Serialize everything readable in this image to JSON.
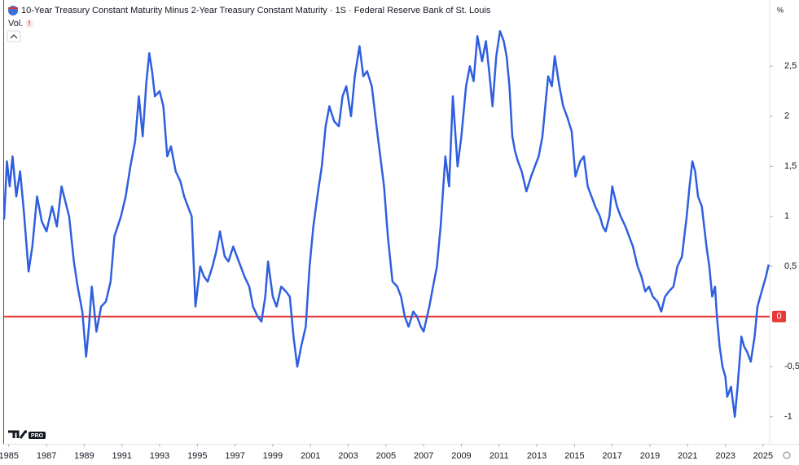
{
  "chart_data": {
    "type": "line",
    "title": "10-Year Treasury Constant Maturity Minus 2-Year Treasury Constant Maturity · 1S · Federal Reserve Bank of St. Louis",
    "volume_label": "Vol.",
    "unit": "%",
    "logo_text": "PRO",
    "color": "#2f5fe0",
    "x": [
      1984.75,
      1984.9,
      1985.05,
      1985.2,
      1985.4,
      1985.6,
      1985.8,
      1986.05,
      1986.25,
      1986.5,
      1986.75,
      1987.0,
      1987.3,
      1987.55,
      1987.8,
      1988.0,
      1988.2,
      1988.45,
      1988.65,
      1988.9,
      1989.1,
      1989.25,
      1989.4,
      1989.65,
      1989.9,
      1990.15,
      1990.4,
      1990.6,
      1990.95,
      1991.2,
      1991.45,
      1991.7,
      1991.9,
      1992.1,
      1992.3,
      1992.45,
      1992.6,
      1992.75,
      1993.0,
      1993.2,
      1993.4,
      1993.6,
      1993.85,
      1994.1,
      1994.3,
      1994.5,
      1994.7,
      1994.9,
      1995.15,
      1995.35,
      1995.55,
      1995.8,
      1996.0,
      1996.2,
      1996.45,
      1996.65,
      1996.9,
      1997.1,
      1997.3,
      1997.5,
      1997.75,
      1997.95,
      1998.2,
      1998.4,
      1998.6,
      1998.75,
      1999.0,
      1999.2,
      1999.45,
      1999.7,
      1999.9,
      2000.1,
      2000.3,
      2000.5,
      2000.75,
      2000.95,
      2001.15,
      2001.4,
      2001.6,
      2001.8,
      2002.0,
      2002.25,
      2002.5,
      2002.7,
      2002.9,
      2003.15,
      2003.35,
      2003.6,
      2003.8,
      2004.0,
      2004.25,
      2004.5,
      2004.7,
      2004.9,
      2005.1,
      2005.35,
      2005.6,
      2005.8,
      2006.0,
      2006.2,
      2006.45,
      2006.65,
      2006.85,
      2007.0,
      2007.3,
      2007.5,
      2007.7,
      2007.9,
      2008.15,
      2008.35,
      2008.55,
      2008.8,
      2009.0,
      2009.25,
      2009.45,
      2009.65,
      2009.85,
      2010.1,
      2010.3,
      2010.5,
      2010.65,
      2010.85,
      2011.05,
      2011.25,
      2011.4,
      2011.55,
      2011.7,
      2011.85,
      2012.0,
      2012.2,
      2012.45,
      2012.7,
      2012.9,
      2013.1,
      2013.3,
      2013.45,
      2013.6,
      2013.8,
      2013.95,
      2014.2,
      2014.4,
      2014.6,
      2014.85,
      2015.05,
      2015.3,
      2015.5,
      2015.7,
      2015.9,
      2016.1,
      2016.35,
      2016.5,
      2016.65,
      2016.85,
      2017.0,
      2017.25,
      2017.45,
      2017.7,
      2017.9,
      2018.1,
      2018.35,
      2018.55,
      2018.75,
      2018.95,
      2019.15,
      2019.4,
      2019.6,
      2019.8,
      2020.0,
      2020.25,
      2020.45,
      2020.7,
      2020.95,
      2021.1,
      2021.25,
      2021.4,
      2021.55,
      2021.75,
      2022.0,
      2022.15,
      2022.3,
      2022.45,
      2022.55,
      2022.7,
      2022.85,
      2023.0,
      2023.1,
      2023.3,
      2023.5,
      2023.65,
      2023.85,
      2024.0,
      2024.15,
      2024.35,
      2024.55,
      2024.7,
      2024.85,
      2025.0,
      2025.15,
      2025.3
    ],
    "values": [
      0.97,
      1.55,
      1.3,
      1.6,
      1.2,
      1.45,
      1.05,
      0.45,
      0.7,
      1.2,
      0.95,
      0.85,
      1.1,
      0.9,
      1.3,
      1.15,
      1.0,
      0.55,
      0.3,
      0.05,
      -0.4,
      -0.1,
      0.3,
      -0.15,
      0.1,
      0.15,
      0.35,
      0.8,
      1.0,
      1.2,
      1.5,
      1.75,
      2.2,
      1.8,
      2.35,
      2.63,
      2.45,
      2.2,
      2.25,
      2.1,
      1.6,
      1.7,
      1.45,
      1.35,
      1.2,
      1.1,
      1.0,
      0.1,
      0.5,
      0.4,
      0.35,
      0.5,
      0.65,
      0.85,
      0.6,
      0.55,
      0.7,
      0.6,
      0.5,
      0.4,
      0.3,
      0.1,
      0.0,
      -0.05,
      0.2,
      0.55,
      0.2,
      0.1,
      0.3,
      0.25,
      0.2,
      -0.2,
      -0.5,
      -0.3,
      -0.1,
      0.5,
      0.9,
      1.25,
      1.5,
      1.9,
      2.1,
      1.95,
      1.9,
      2.2,
      2.3,
      2.0,
      2.4,
      2.7,
      2.4,
      2.45,
      2.3,
      1.9,
      1.6,
      1.3,
      0.8,
      0.35,
      0.3,
      0.2,
      0.0,
      -0.1,
      0.05,
      0.0,
      -0.1,
      -0.15,
      0.1,
      0.3,
      0.5,
      0.9,
      1.6,
      1.3,
      2.2,
      1.5,
      1.8,
      2.3,
      2.5,
      2.35,
      2.8,
      2.55,
      2.75,
      2.4,
      2.1,
      2.6,
      2.85,
      2.75,
      2.6,
      2.3,
      1.8,
      1.65,
      1.55,
      1.45,
      1.25,
      1.4,
      1.5,
      1.6,
      1.8,
      2.1,
      2.4,
      2.3,
      2.6,
      2.3,
      2.1,
      2.0,
      1.85,
      1.4,
      1.55,
      1.6,
      1.3,
      1.2,
      1.1,
      1.0,
      0.9,
      0.85,
      1.0,
      1.3,
      1.1,
      1.0,
      0.9,
      0.8,
      0.7,
      0.5,
      0.4,
      0.25,
      0.3,
      0.2,
      0.15,
      0.05,
      0.2,
      0.25,
      0.3,
      0.5,
      0.6,
      1.0,
      1.3,
      1.55,
      1.45,
      1.2,
      1.1,
      0.7,
      0.5,
      0.2,
      0.3,
      0.0,
      -0.3,
      -0.5,
      -0.6,
      -0.8,
      -0.7,
      -1.0,
      -0.7,
      -0.2,
      -0.3,
      -0.35,
      -0.45,
      -0.2,
      0.1,
      0.2,
      0.3,
      0.4,
      0.52
    ],
    "xlim": [
      1984.75,
      2025.35
    ],
    "ylim": [
      -1.27,
      3.12
    ],
    "xticks": [
      1985,
      1987,
      1989,
      1991,
      1993,
      1995,
      1997,
      1999,
      2001,
      2003,
      2005,
      2007,
      2009,
      2011,
      2013,
      2015,
      2017,
      2019,
      2021,
      2023,
      2025
    ],
    "yticks": [
      {
        "value": 2.5,
        "label": "2,5"
      },
      2,
      {
        "value": 1.5,
        "label": "1,5"
      },
      1,
      {
        "value": 0.5,
        "label": "0,5"
      },
      {
        "value": -0.5,
        "label": "-0,5"
      },
      -1
    ],
    "hline": 0,
    "hline_color": "#e53935"
  }
}
